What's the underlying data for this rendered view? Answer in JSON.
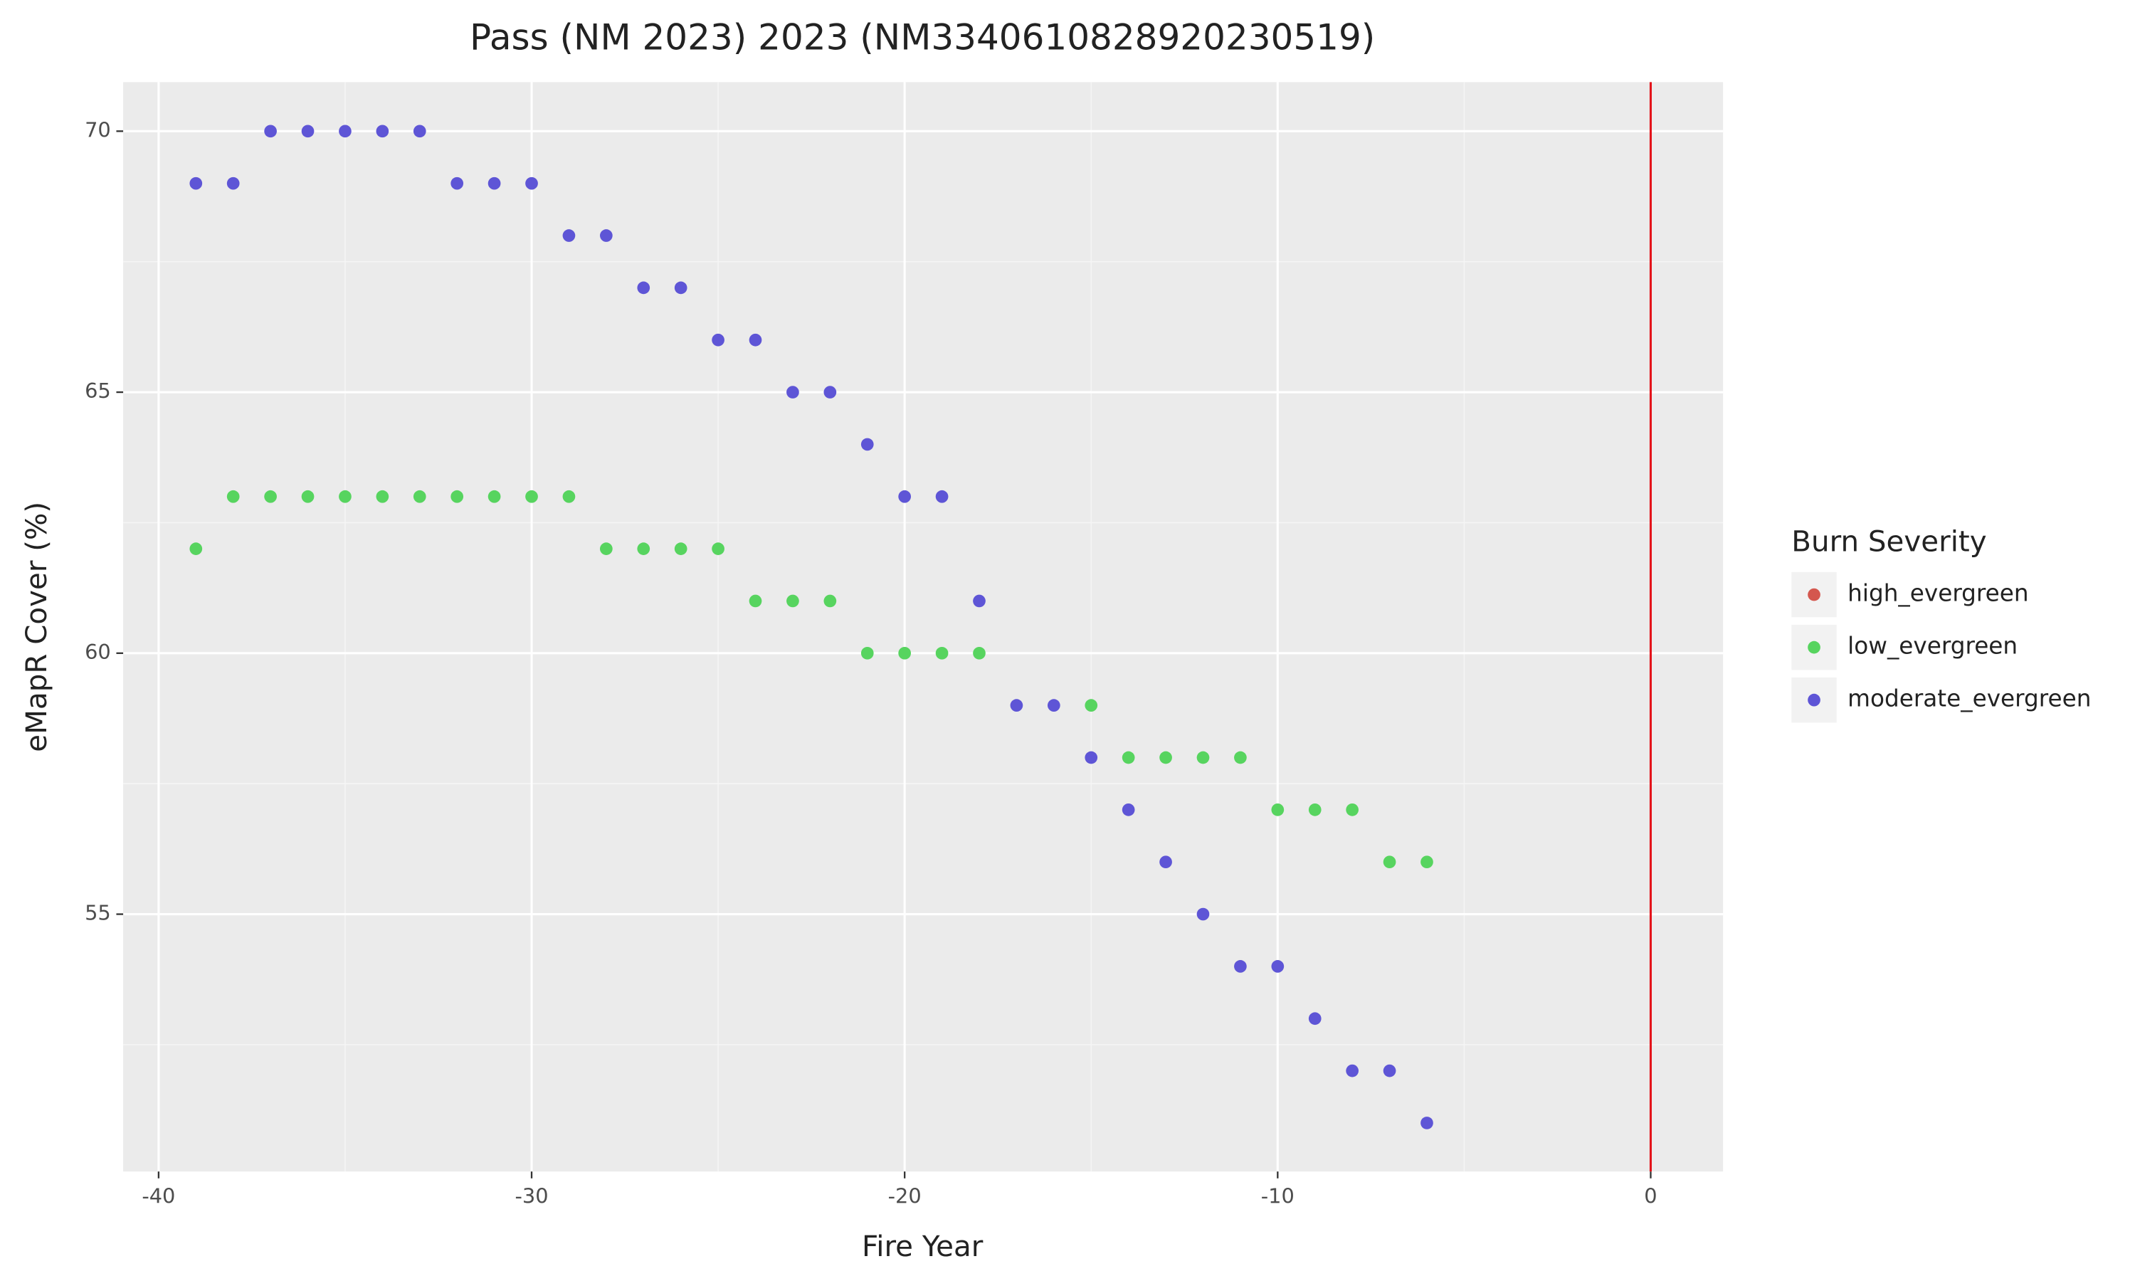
{
  "chart_data": {
    "type": "scatter",
    "title": "Pass (NM 2023) 2023 (NM3340610828920230519)",
    "x_label": "Fire Year",
    "y_label": "eMapR Cover (%)",
    "legend_title": "Burn Severity",
    "legend_position": "right",
    "xlim": [
      -40.95,
      1.94
    ],
    "ylim": [
      50.07,
      70.94
    ],
    "xticks": [
      -40,
      -30,
      -20,
      -10,
      0
    ],
    "yticks": [
      55,
      60,
      65,
      70
    ],
    "xminor": [
      -35,
      -25,
      -15,
      -5
    ],
    "yminor": [
      52.5,
      57.5,
      62.5,
      67.5
    ],
    "grid": true,
    "vline": {
      "x": 0,
      "color": "#e3141b"
    },
    "series": [
      {
        "name": "high_evergreen",
        "color": "#d4574e",
        "x": [],
        "values": []
      },
      {
        "name": "low_evergreen",
        "color": "#57d45f",
        "x": [
          -39,
          -38,
          -37,
          -36,
          -35,
          -34,
          -33,
          -32,
          -31,
          -30,
          -29,
          -28,
          -27,
          -26,
          -25,
          -24,
          -23,
          -22,
          -21,
          -20,
          -19,
          -18,
          -15,
          -14,
          -13,
          -12,
          -11,
          -10,
          -9,
          -8,
          -7,
          -6
        ],
        "values": [
          62,
          63,
          63,
          63,
          63,
          63,
          63,
          63,
          63,
          63,
          63,
          62,
          62,
          62,
          62,
          61,
          61,
          61,
          60,
          60,
          60,
          60,
          59,
          58,
          58,
          58,
          58,
          57,
          57,
          57,
          56,
          56
        ]
      },
      {
        "name": "moderate_evergreen",
        "color": "#5e55d6",
        "x": [
          -39,
          -38,
          -37,
          -36,
          -35,
          -34,
          -33,
          -32,
          -31,
          -30,
          -29,
          -28,
          -27,
          -26,
          -25,
          -24,
          -23,
          -22,
          -21,
          -20,
          -19,
          -18,
          -17,
          -16,
          -15,
          -14,
          -13,
          -12,
          -11,
          -10,
          -9,
          -8,
          -7,
          -6
        ],
        "values": [
          69,
          69,
          70,
          70,
          70,
          70,
          70,
          69,
          69,
          69,
          68,
          68,
          67,
          67,
          66,
          66,
          65,
          65,
          64,
          63,
          63,
          61,
          59,
          59,
          58,
          57,
          56,
          55,
          54,
          54,
          53,
          52,
          52,
          51
        ]
      }
    ]
  }
}
